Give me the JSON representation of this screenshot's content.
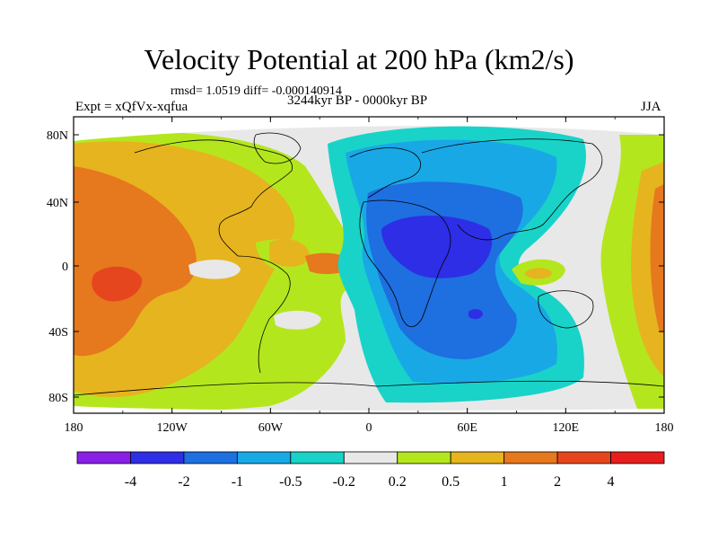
{
  "title": "Velocity Potential at 200 hPa (km2/s)",
  "subtitle": "rmsd= 1.0519 diff= -0.000140914",
  "left_label": "Expt = xQfVx-xqfua",
  "center_label": "3244kyr BP - 0000kyr BP",
  "right_label": "JJA",
  "x_ticks": [
    "180",
    "120W",
    "60W",
    "0",
    "60E",
    "120E",
    "180"
  ],
  "y_ticks": [
    "80N",
    "40N",
    "0",
    "40S",
    "80S"
  ],
  "colorbar": {
    "colors": [
      "#8a1fe6",
      "#2e2ee6",
      "#1e6fe0",
      "#19a8e6",
      "#19d3c8",
      "#e8e8e8",
      "#b4e61e",
      "#e6b41e",
      "#e6781e",
      "#e6461e",
      "#e61e1e"
    ],
    "labels": [
      "-4",
      "-2",
      "-1",
      "-0.5",
      "-0.2",
      "0.2",
      "0.5",
      "1",
      "2",
      "4"
    ]
  },
  "palette": {
    "gray": "#e8e8e8",
    "cyan": "#19d3c8",
    "lightblue": "#19a8e6",
    "blue": "#1e6fe0",
    "darkblue": "#2e2ee6",
    "lime": "#b4e61e",
    "gold": "#e6b41e",
    "orange": "#e6781e",
    "redorange": "#e6461e"
  }
}
